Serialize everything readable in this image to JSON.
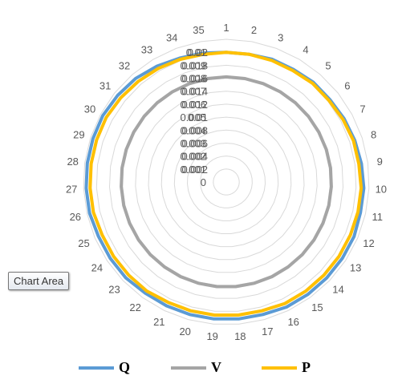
{
  "chart_data": {
    "type": "radar",
    "categories": [
      "1",
      "2",
      "3",
      "4",
      "5",
      "6",
      "7",
      "8",
      "9",
      "10",
      "11",
      "12",
      "13",
      "14",
      "15",
      "16",
      "17",
      "18",
      "19",
      "20",
      "21",
      "22",
      "23",
      "24",
      "25",
      "26",
      "27",
      "28",
      "29",
      "30",
      "31",
      "32",
      "33",
      "34",
      "35"
    ],
    "radial_ticks": [
      "0",
      "0.001",
      "0.002",
      "0.003",
      "0.004",
      "0.005",
      "0.006",
      "0.007",
      "0.008",
      "0.009",
      "0.01"
    ],
    "radial_ticks_overlay": [
      "0.002",
      "0.004",
      "0.006",
      "0.008",
      "0.01",
      "0.012",
      "0.014",
      "0.016",
      "0.018",
      "0.02"
    ],
    "rlim": [
      0,
      0.011
    ],
    "grid": true,
    "legend_position": "bottom",
    "series": [
      {
        "name": "Q",
        "color": "#5b9bd5",
        "values": [
          0.01,
          0.01,
          0.0101,
          0.0101,
          0.0102,
          0.0102,
          0.0103,
          0.0104,
          0.0105,
          0.0106,
          0.0106,
          0.0107,
          0.0107,
          0.0107,
          0.0107,
          0.0107,
          0.0106,
          0.0106,
          0.0106,
          0.0106,
          0.0106,
          0.0106,
          0.0107,
          0.0107,
          0.0107,
          0.0108,
          0.0108,
          0.0108,
          0.0108,
          0.0108,
          0.0107,
          0.0106,
          0.0104,
          0.0102,
          0.0101
        ]
      },
      {
        "name": "V",
        "color": "#a5a5a5",
        "values": [
          0.0081,
          0.0081,
          0.0081,
          0.0081,
          0.0081,
          0.0081,
          0.0081,
          0.0081,
          0.0081,
          0.0081,
          0.0081,
          0.0081,
          0.0081,
          0.0081,
          0.0081,
          0.0081,
          0.0081,
          0.0081,
          0.0081,
          0.0081,
          0.0081,
          0.0081,
          0.0081,
          0.0081,
          0.0081,
          0.0081,
          0.0081,
          0.0081,
          0.0081,
          0.0081,
          0.0081,
          0.0081,
          0.0081,
          0.0081,
          0.0081
        ]
      },
      {
        "name": "P",
        "color": "#ffc000",
        "values": [
          0.01,
          0.01,
          0.01,
          0.01,
          0.0101,
          0.0101,
          0.0102,
          0.0103,
          0.0103,
          0.0104,
          0.0104,
          0.0104,
          0.0104,
          0.0104,
          0.0104,
          0.0104,
          0.0103,
          0.0103,
          0.0103,
          0.0103,
          0.0103,
          0.0104,
          0.0104,
          0.0104,
          0.0104,
          0.0105,
          0.0105,
          0.0105,
          0.0105,
          0.0105,
          0.0104,
          0.0103,
          0.0102,
          0.0101,
          0.01
        ]
      }
    ]
  },
  "tooltip": {
    "text": "Chart Area"
  }
}
